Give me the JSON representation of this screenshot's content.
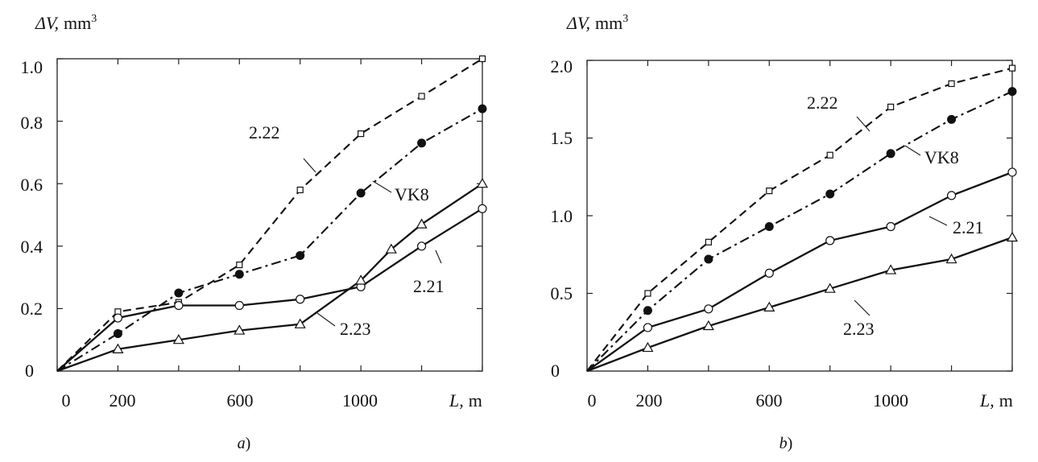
{
  "chart_data": [
    {
      "type": "line",
      "panel_label": "a",
      "x_label": "L,",
      "x_unit": "m",
      "y_label": "ΔV,",
      "y_unit": "mm",
      "y_unit_sup": "3",
      "xlim": [
        0,
        1400
      ],
      "ylim": [
        0,
        1.0
      ],
      "x_tick_labels": [
        "0",
        "200",
        "600",
        "1000"
      ],
      "y_tick_labels": [
        "0",
        "0.2",
        "0.4",
        "0.6",
        "0.8",
        "1.0"
      ],
      "series": [
        {
          "name": "2.22",
          "line": "dashed",
          "marker": "square",
          "x": [
            0,
            200,
            400,
            600,
            800,
            1000,
            1200,
            1400
          ],
          "y": [
            0,
            0.19,
            0.22,
            0.34,
            0.58,
            0.76,
            0.88,
            1.0
          ]
        },
        {
          "name": "VK8",
          "line": "dashdot",
          "marker": "filled-circle",
          "x": [
            0,
            200,
            400,
            600,
            800,
            1000,
            1200,
            1400
          ],
          "y": [
            0,
            0.12,
            0.25,
            0.31,
            0.37,
            0.57,
            0.73,
            0.84
          ]
        },
        {
          "name": "2.21",
          "line": "solid",
          "marker": "circle",
          "x": [
            0,
            200,
            400,
            600,
            800,
            1000,
            1200,
            1400
          ],
          "y": [
            0,
            0.17,
            0.21,
            0.21,
            0.23,
            0.27,
            0.4,
            0.52
          ]
        },
        {
          "name": "2.23",
          "line": "solid",
          "marker": "triangle",
          "x": [
            0,
            200,
            400,
            600,
            800,
            1000,
            1100,
            1200,
            1400
          ],
          "y": [
            0,
            0.07,
            0.1,
            0.13,
            0.15,
            0.29,
            0.39,
            0.47,
            0.6
          ]
        }
      ]
    },
    {
      "type": "line",
      "panel_label": "b",
      "x_label": "L,",
      "x_unit": "m",
      "y_label": "ΔV,",
      "y_unit": "mm",
      "y_unit_sup": "3",
      "xlim": [
        0,
        1400
      ],
      "ylim": [
        0,
        2.0
      ],
      "x_tick_labels": [
        "0",
        "200",
        "600",
        "1000"
      ],
      "y_tick_labels": [
        "0",
        "0.5",
        "1.0",
        "1.5",
        "2.0"
      ],
      "series": [
        {
          "name": "2.22",
          "line": "dashed",
          "marker": "square",
          "x": [
            0,
            200,
            400,
            600,
            800,
            1000,
            1200,
            1400
          ],
          "y": [
            0,
            0.5,
            0.83,
            1.16,
            1.39,
            1.7,
            1.85,
            1.95
          ]
        },
        {
          "name": "VK8",
          "line": "dashdot",
          "marker": "filled-circle",
          "x": [
            0,
            200,
            400,
            600,
            800,
            1000,
            1200,
            1400
          ],
          "y": [
            0,
            0.39,
            0.72,
            0.93,
            1.14,
            1.4,
            1.62,
            1.8
          ]
        },
        {
          "name": "2.21",
          "line": "solid",
          "marker": "circle",
          "x": [
            0,
            200,
            400,
            600,
            800,
            1000,
            1200,
            1400
          ],
          "y": [
            0,
            0.28,
            0.4,
            0.63,
            0.84,
            0.93,
            1.13,
            1.28
          ]
        },
        {
          "name": "2.23",
          "line": "solid",
          "marker": "triangle",
          "x": [
            0,
            200,
            400,
            600,
            800,
            1000,
            1200,
            1400
          ],
          "y": [
            0,
            0.15,
            0.29,
            0.41,
            0.53,
            0.65,
            0.72,
            0.86
          ]
        }
      ]
    }
  ]
}
